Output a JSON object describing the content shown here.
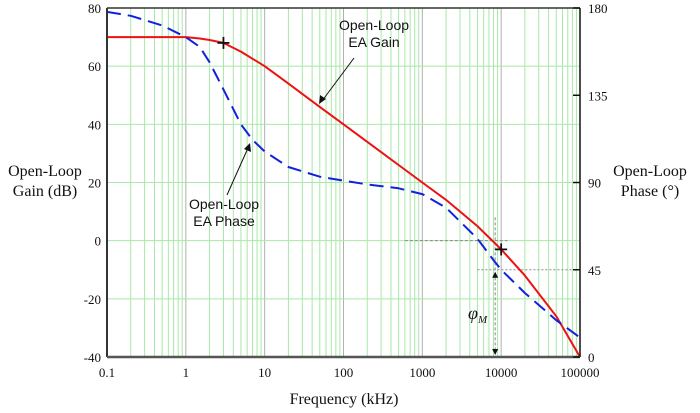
{
  "chart_data": {
    "type": "line",
    "title": "",
    "xlabel": "Frequency (kHz)",
    "ylabel": "Open-Loop Gain (dB)",
    "ylabel_lines": [
      "Open-Loop",
      "Gain (dB)"
    ],
    "y2label": "Open-Loop Phase (°)",
    "y2label_lines": [
      "Open-Loop",
      "Phase (°)"
    ],
    "xscale": "log",
    "xlim": [
      0.1,
      100000
    ],
    "ylim": [
      -40,
      80
    ],
    "y2lim": [
      0,
      180
    ],
    "x_ticks": [
      "0.1",
      "1",
      "10",
      "100",
      "1000",
      "10000",
      "100000"
    ],
    "x_tick_values": [
      0.1,
      1,
      10,
      100,
      1000,
      10000,
      100000
    ],
    "y_ticks": [
      80,
      60,
      40,
      20,
      0,
      -20,
      -40
    ],
    "y2_ticks": [
      180,
      135,
      90,
      45,
      0
    ],
    "grid": true,
    "colors": {
      "gain": "#ee1111",
      "phase": "#1122dd",
      "grid": "#a8e8a8",
      "decade_grid": "#b0b0b0"
    },
    "series": [
      {
        "name": "Open-Loop EA Gain",
        "axis": "left",
        "style": "solid",
        "x": [
          0.1,
          0.5,
          1,
          1.5,
          2,
          3,
          5,
          10,
          20,
          50,
          100,
          200,
          500,
          1000,
          2000,
          5000,
          10000,
          20000,
          50000,
          100000
        ],
        "y": [
          70,
          70,
          70,
          69.5,
          69,
          68,
          65,
          60,
          54,
          46,
          40,
          34,
          26,
          20,
          14,
          5,
          -3,
          -12,
          -26,
          -40
        ]
      },
      {
        "name": "Open-Loop EA Phase",
        "axis": "right",
        "style": "dashed",
        "x": [
          0.1,
          0.2,
          0.5,
          1,
          1.5,
          2,
          3,
          5,
          7,
          10,
          20,
          50,
          100,
          200,
          500,
          1000,
          2000,
          5000,
          8000,
          10000,
          20000,
          50000,
          100000
        ],
        "y": [
          178,
          176,
          171,
          165,
          160,
          152,
          138,
          120,
          112,
          106,
          98,
          93,
          91,
          89,
          87,
          84,
          77,
          61,
          50,
          45,
          33,
          19,
          10
        ]
      }
    ],
    "annotations": {
      "gain_label": [
        "Open-Loop",
        "EA Gain"
      ],
      "phase_label": [
        "Open-Loop",
        "EA Phase"
      ],
      "phase_margin_label": "φ",
      "phase_margin_subscript": "M",
      "markers": [
        {
          "x": 3,
          "y": 68,
          "axis": "left"
        },
        {
          "x": 10000,
          "y": -3,
          "axis": "left"
        }
      ]
    }
  }
}
